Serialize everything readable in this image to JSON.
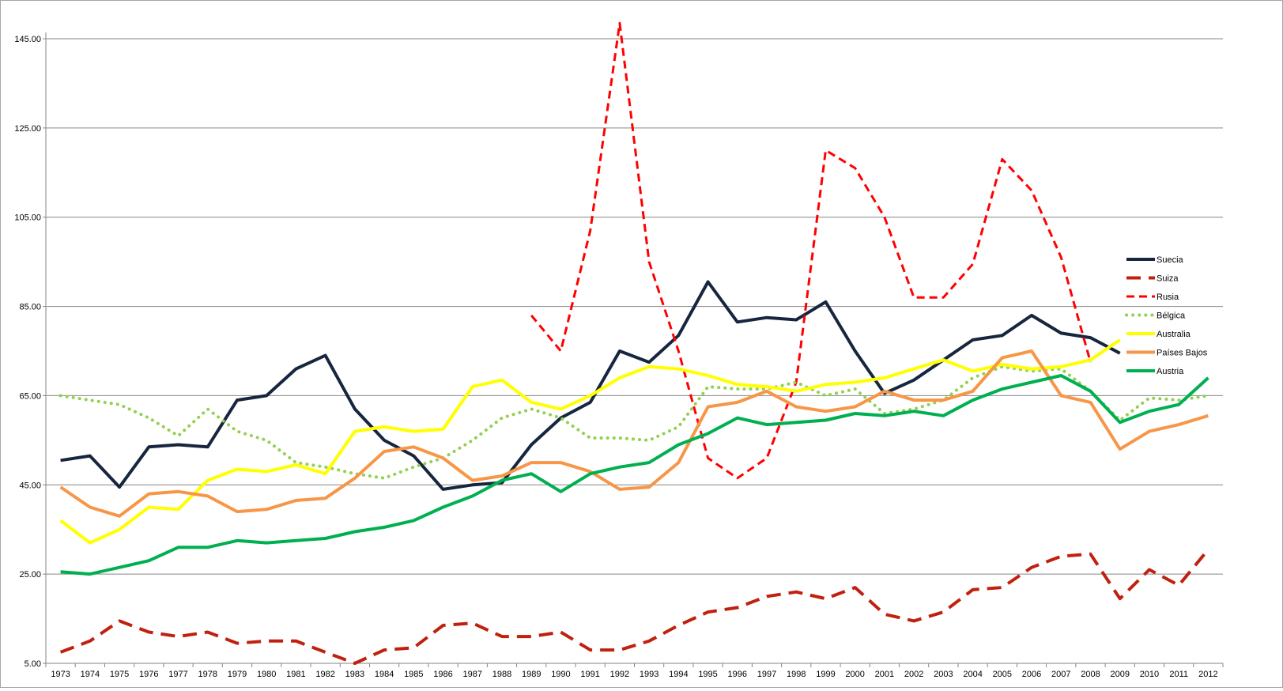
{
  "chart_data": {
    "type": "line",
    "title": "",
    "xlabel": "",
    "ylabel": "",
    "ylim": [
      5,
      145
    ],
    "y_ticks": [
      "5.00",
      "25.00",
      "45.00",
      "65.00",
      "85.00",
      "105.00",
      "125.00",
      "145.00"
    ],
    "y_tick_values": [
      5,
      25,
      45,
      65,
      85,
      105,
      125,
      145
    ],
    "categories": [
      "1973",
      "1974",
      "1975",
      "1976",
      "1977",
      "1978",
      "1979",
      "1980",
      "1981",
      "1982",
      "1983",
      "1984",
      "1985",
      "1986",
      "1987",
      "1988",
      "1989",
      "1990",
      "1991",
      "1992",
      "1993",
      "1994",
      "1995",
      "1996",
      "1997",
      "1998",
      "1999",
      "2000",
      "2001",
      "2002",
      "2003",
      "2004",
      "2005",
      "2006",
      "2007",
      "2008",
      "2009",
      "2010",
      "2011",
      "2012"
    ],
    "grid": true,
    "legend_position": "right",
    "series": [
      {
        "name": "Suecia",
        "color": "#17263f",
        "style": "solid",
        "width": 4,
        "values": [
          50.5,
          51.5,
          44.5,
          53.5,
          54,
          53.5,
          64,
          65,
          71,
          74,
          62,
          55,
          51.5,
          44,
          45,
          45.5,
          54,
          60,
          63.5,
          75,
          72.5,
          78.5,
          90.5,
          81.5,
          82.5,
          82,
          86,
          75,
          65.5,
          68.5,
          73,
          77.5,
          78.5,
          83,
          79,
          78,
          74.5,
          null,
          null,
          null
        ]
      },
      {
        "name": "Suiza",
        "color": "#c0210f",
        "style": "dash",
        "width": 4,
        "values": [
          7.5,
          10,
          14.5,
          12,
          11,
          12,
          9.5,
          10,
          10,
          7.5,
          5,
          8,
          8.5,
          13.5,
          14,
          11,
          11,
          12,
          8,
          8,
          10,
          13.5,
          16.5,
          17.5,
          20,
          21,
          19.5,
          22,
          16,
          14.5,
          16.5,
          21.5,
          22,
          26.5,
          29,
          29.5,
          19.5,
          26,
          22.5,
          30.5
        ]
      },
      {
        "name": "Rusia",
        "color": "#ff0000",
        "style": "shortdash",
        "width": 3,
        "values": [
          null,
          null,
          null,
          null,
          null,
          null,
          null,
          null,
          null,
          null,
          null,
          null,
          null,
          null,
          null,
          null,
          83,
          75,
          102,
          148.5,
          95,
          75,
          51,
          46.5,
          51,
          68,
          120,
          116,
          105,
          87,
          87,
          94.5,
          118,
          111,
          96,
          72.5,
          null,
          null,
          null,
          null
        ]
      },
      {
        "name": "Bélgica",
        "color": "#92d050",
        "style": "dot",
        "width": 4,
        "values": [
          65,
          64,
          63,
          60,
          56,
          62,
          57,
          55,
          50,
          49,
          47.5,
          46.5,
          49,
          51,
          55,
          60,
          62,
          60,
          55.5,
          55.5,
          55,
          58,
          67,
          66.5,
          66.5,
          68,
          65,
          66.5,
          61,
          62,
          64,
          69,
          71.5,
          70.5,
          71,
          66,
          59.5,
          64.5,
          64,
          65
        ]
      },
      {
        "name": "Australia",
        "color": "#ffff00",
        "style": "solid",
        "width": 4,
        "values": [
          37,
          32,
          35,
          40,
          39.5,
          46,
          48.5,
          48,
          49.5,
          47.5,
          57,
          58,
          57,
          57.5,
          67,
          68.5,
          63.5,
          62,
          65,
          69,
          71.5,
          71,
          69.5,
          67.5,
          67,
          66,
          67.5,
          68,
          69,
          71,
          73,
          70.5,
          72,
          71,
          71.5,
          73,
          77.5,
          null,
          null,
          null
        ]
      },
      {
        "name": "Países Bajos",
        "color": "#f79646",
        "style": "solid",
        "width": 4,
        "values": [
          44.5,
          40,
          38,
          43,
          43.5,
          42.5,
          39,
          39.5,
          41.5,
          42,
          46.5,
          52.5,
          53.5,
          51,
          46,
          47,
          50,
          50,
          48,
          44,
          44.5,
          50,
          62.5,
          63.5,
          66,
          62.5,
          61.5,
          62.5,
          66,
          64,
          64,
          66,
          73.5,
          75,
          65,
          63.5,
          53,
          57,
          58.5,
          60.5
        ]
      },
      {
        "name": "Austria",
        "color": "#00b050",
        "style": "solid",
        "width": 4,
        "values": [
          25.5,
          25,
          26.5,
          28,
          31,
          31,
          32.5,
          32,
          32.5,
          33,
          34.5,
          35.5,
          37,
          40,
          42.5,
          46,
          47.5,
          43.5,
          47.5,
          49,
          50,
          54,
          56.5,
          60,
          58.5,
          59,
          59.5,
          61,
          60.5,
          61.5,
          60.5,
          64,
          66.5,
          68,
          69.5,
          66,
          59,
          61.5,
          63,
          69
        ]
      }
    ]
  }
}
